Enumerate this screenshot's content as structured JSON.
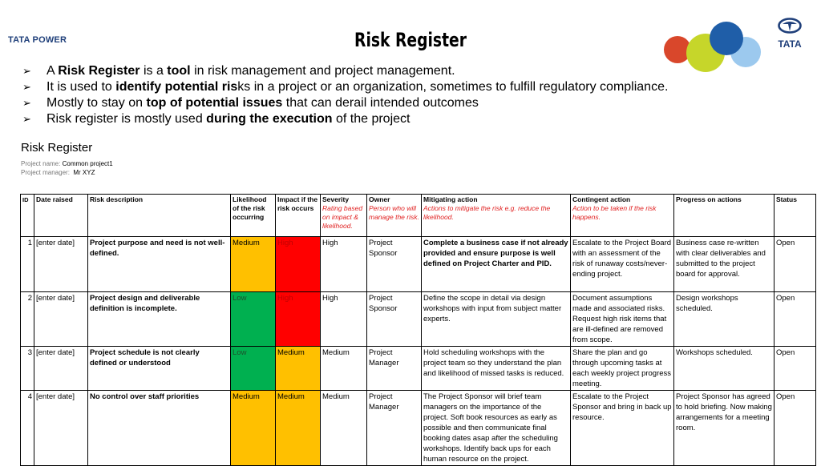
{
  "header": {
    "logo_left_brand": "TATA",
    "logo_left_suffix": " POWER",
    "title": "Risk Register",
    "logo_right": "TATA"
  },
  "colors": {
    "circle_red": "#d9472b",
    "circle_green": "#c6d62a",
    "circle_blue": "#1f5ea8",
    "circle_lightblue": "#9cc9ee",
    "medium": "#ffc000",
    "high": "#ff0000",
    "low": "#00b050"
  },
  "bullets": [
    {
      "pre": "A ",
      "b1": "Risk Register",
      "mid": " is a ",
      "b2": "tool",
      "post": " in risk management and project management."
    },
    {
      "pre": "It is used to ",
      "b1": "identify potential ris",
      "mid": "ks in a project or an organization, sometimes to fulfill regulatory compliance.",
      "b2": "",
      "post": ""
    },
    {
      "pre": "Mostly to stay on ",
      "b1": "top of potential issues",
      "mid": " that can derail intended outcomes",
      "b2": "",
      "post": ""
    },
    {
      "pre": "Risk register is mostly used ",
      "b1": "during the execution",
      "mid": " of the project",
      "b2": "",
      "post": ""
    }
  ],
  "register": {
    "heading": "Risk Register",
    "project_name_label": "Project name:",
    "project_name_value": "Common project1",
    "project_manager_label": "Project manager:",
    "project_manager_value": "Mr XYZ",
    "columns": {
      "id": "ID",
      "date": "Date raised",
      "desc": "Risk description",
      "likelihood": "Likelihood of the risk occurring",
      "impact": "Impact if the risk occurs",
      "severity": "Severity",
      "severity_sub": "Rating based on impact & likelihood.",
      "owner": "Owner",
      "owner_sub": "Person who will manage the risk.",
      "mitigating": "Mitigating action",
      "mitigating_sub": "Actions to mitigate the risk e.g. reduce the likelihood.",
      "contingent": "Contingent action",
      "contingent_sub": "Action to be taken if the risk happens.",
      "progress": "Progress on actions",
      "status": "Status"
    },
    "rows": [
      {
        "id": "1",
        "date": "[enter date]",
        "desc": "Project purpose and need is not well-defined.",
        "likelihood": "Medium",
        "impact": "High",
        "severity": "High",
        "owner": "Project Sponsor",
        "mitigating": "Complete a business case if not already provided and ensure purpose is well defined on Project Charter and PID.",
        "contingent": "Escalate to the Project Board with an assessment of the risk of runaway costs/never-ending project.",
        "progress": "Business case re-written with clear deliverables and submitted to the project board for approval.",
        "status": "Open"
      },
      {
        "id": "2",
        "date": "[enter date]",
        "desc": "Project design and deliverable definition is incomplete.",
        "likelihood": "Low",
        "impact": "High",
        "severity": "High",
        "owner": "Project Sponsor",
        "mitigating": "Define the scope in detail via design workshops with input from subject matter experts.",
        "contingent": "Document assumptions made and associated risks. Request high risk items that are ill-defined are removed from scope.",
        "progress": "Design workshops scheduled.",
        "status": "Open"
      },
      {
        "id": "3",
        "date": "[enter date]",
        "desc": "Project schedule is not clearly defined or understood",
        "likelihood": "Low",
        "impact": "Medium",
        "severity": "Medium",
        "owner": "Project Manager",
        "mitigating": "Hold scheduling workshops with the project team so they understand the plan and likelihood of missed tasks is reduced.",
        "contingent": "Share the plan and go through upcoming tasks at each weekly project progress meeting.",
        "progress": "Workshops scheduled.",
        "status": "Open"
      },
      {
        "id": "4",
        "date": "[enter date]",
        "desc": "No control over staff priorities",
        "likelihood": "Medium",
        "impact": "Medium",
        "severity": "Medium",
        "owner": "Project Manager",
        "mitigating": "The Project Sponsor will brief team managers on the importance of the project. Soft book resources as early as possible and then communicate final booking dates asap after the scheduling workshops. Identify back ups for each human resource on the project.",
        "contingent": "Escalate to the Project Sponsor and bring in back up resource.",
        "progress": "Project Sponsor has agreed to hold briefing. Now making arrangements for a meeting room.",
        "status": "Open"
      }
    ]
  }
}
